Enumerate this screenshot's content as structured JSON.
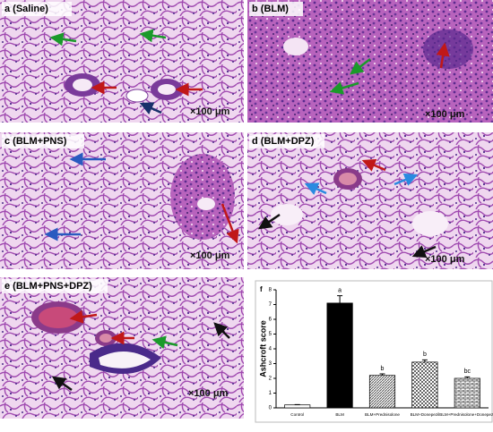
{
  "panels": [
    {
      "label": "a (Saline)",
      "scale": "×100 μm"
    },
    {
      "label": "b (BLM)",
      "scale": "×100 μm"
    },
    {
      "label": "c (BLM+PNS)",
      "scale": "×100 μm"
    },
    {
      "label": "d (BLM+DPZ)",
      "scale": "×100 μm"
    },
    {
      "label": "e (BLM+PNS+DPZ)",
      "scale": "×100 μm"
    }
  ],
  "chart_data": {
    "type": "bar",
    "panel_label": "f",
    "ylabel": "Ashcroft score",
    "categories": [
      "Control",
      "BLM",
      "BLM+Prednisolone",
      "BLM+Donepezil",
      "BLM+Prednisolone+Donepezil"
    ],
    "values": [
      0.2,
      7.1,
      2.2,
      3.1,
      2.0
    ],
    "errors": [
      0.02,
      0.5,
      0.1,
      0.15,
      0.1
    ],
    "annotations": [
      null,
      "a",
      "b",
      "b",
      "bc"
    ],
    "ylim": [
      0,
      8
    ],
    "yticks": [
      0,
      1,
      2,
      3,
      4,
      5,
      6,
      7,
      8
    ]
  }
}
